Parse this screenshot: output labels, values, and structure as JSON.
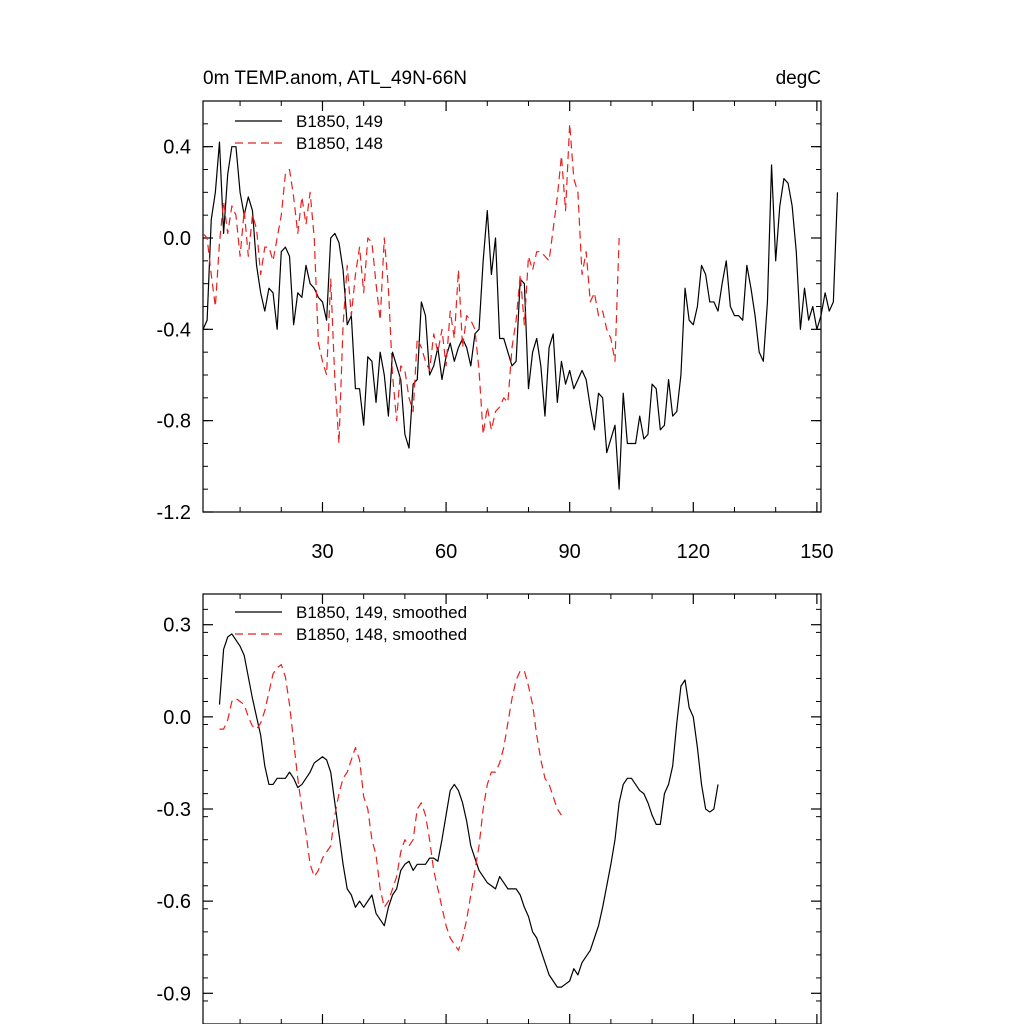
{
  "colors": {
    "run149": "#000000",
    "run148": "#e8211f",
    "axis": "#000000",
    "background": "#ffffff"
  },
  "chart_data": [
    {
      "type": "line",
      "title": "0m TEMP.anom, ATL_49N-66N",
      "units": "degC",
      "xlim": [
        1,
        151
      ],
      "ylim": [
        -1.2,
        0.6
      ],
      "xticks": [
        30,
        60,
        90,
        120,
        150
      ],
      "yticks": [
        -1.2,
        -0.8,
        -0.4,
        0.0,
        0.4
      ],
      "ytick_labels": [
        "-1.2",
        "-0.8",
        "-0.4",
        "0.0",
        "0.4"
      ],
      "grid": false,
      "legend_position": "top-left",
      "series": [
        {
          "name": "B1850, 149",
          "style": "solid",
          "x_start": 1,
          "values": [
            -0.4,
            -0.36,
            0.08,
            0.2,
            0.42,
            0.02,
            0.28,
            0.4,
            0.4,
            0.2,
            0.1,
            0.18,
            0.12,
            -0.12,
            -0.24,
            -0.32,
            -0.22,
            -0.24,
            -0.4,
            -0.06,
            -0.04,
            -0.08,
            -0.38,
            -0.24,
            -0.26,
            -0.12,
            -0.2,
            -0.22,
            -0.26,
            -0.28,
            -0.36,
            0.0,
            0.02,
            -0.02,
            -0.14,
            -0.38,
            -0.34,
            -0.66,
            -0.66,
            -0.82,
            -0.52,
            -0.54,
            -0.72,
            -0.5,
            -0.6,
            -0.78,
            -0.5,
            -0.56,
            -0.62,
            -0.86,
            -0.92,
            -0.64,
            -0.62,
            -0.28,
            -0.34,
            -0.6,
            -0.56,
            -0.48,
            -0.62,
            -0.52,
            -0.46,
            -0.54,
            -0.48,
            -0.44,
            -0.48,
            -0.56,
            -0.42,
            -0.4,
            -0.1,
            0.12,
            -0.16,
            0.0,
            -0.44,
            -0.44,
            -0.5,
            -0.56,
            -0.54,
            -0.18,
            -0.2,
            -0.66,
            -0.5,
            -0.44,
            -0.56,
            -0.78,
            -0.48,
            -0.42,
            -0.72,
            -0.54,
            -0.64,
            -0.58,
            -0.66,
            -0.62,
            -0.58,
            -0.62,
            -0.74,
            -0.84,
            -0.68,
            -0.7,
            -0.94,
            -0.88,
            -0.82,
            -1.1,
            -0.68,
            -0.9,
            -0.9,
            -0.9,
            -0.78,
            -0.88,
            -0.86,
            -0.64,
            -0.66,
            -0.84,
            -0.82,
            -0.62,
            -0.78,
            -0.76,
            -0.6,
            -0.22,
            -0.36,
            -0.38,
            -0.3,
            -0.12,
            -0.16,
            -0.28,
            -0.28,
            -0.32,
            -0.2,
            -0.1,
            -0.3,
            -0.34,
            -0.34,
            -0.36,
            -0.12,
            -0.22,
            -0.34,
            -0.5,
            -0.54,
            -0.28,
            0.32,
            -0.1,
            0.14,
            0.26,
            0.24,
            0.14,
            -0.06,
            -0.4,
            -0.22,
            -0.36,
            -0.3,
            -0.4,
            -0.34,
            -0.24,
            -0.32,
            -0.28,
            0.2
          ]
        },
        {
          "name": "B1850, 148",
          "style": "dashed",
          "x_start": 1,
          "values": [
            0.02,
            0.0,
            -0.16,
            -0.3,
            -0.02,
            0.16,
            0.02,
            0.14,
            0.1,
            -0.08,
            0.12,
            -0.08,
            0.1,
            0.04,
            -0.16,
            -0.04,
            -0.04,
            -0.1,
            0.0,
            0.1,
            0.28,
            0.3,
            0.18,
            0.02,
            0.18,
            0.06,
            0.2,
            0.0,
            -0.46,
            -0.54,
            -0.6,
            -0.18,
            -0.62,
            -0.9,
            -0.38,
            -0.12,
            -0.34,
            -0.16,
            -0.04,
            -0.24,
            0.0,
            -0.02,
            -0.2,
            -0.36,
            0.0,
            -0.22,
            -0.6,
            -0.8,
            -0.56,
            -0.58,
            -0.7,
            -0.76,
            -0.44,
            -0.48,
            -0.54,
            -0.58,
            -0.42,
            -0.5,
            -0.4,
            -0.56,
            -0.32,
            -0.44,
            -0.14,
            -0.48,
            -0.34,
            -0.36,
            -0.4,
            -0.58,
            -0.86,
            -0.74,
            -0.84,
            -0.76,
            -0.74,
            -0.7,
            -0.72,
            -0.48,
            -0.36,
            -0.16,
            -0.38,
            -0.08,
            -0.14,
            -0.06,
            -0.06,
            -0.08,
            -0.1,
            0.04,
            0.18,
            0.36,
            0.12,
            0.5,
            0.26,
            0.2,
            -0.16,
            -0.06,
            -0.28,
            -0.24,
            -0.34,
            -0.32,
            -0.4,
            -0.44,
            -0.54,
            0.0
          ]
        }
      ]
    },
    {
      "type": "line",
      "title": "",
      "xlim": [
        1,
        151
      ],
      "ylim": [
        -1.0,
        0.4
      ],
      "xticks": [
        30,
        60,
        90,
        120,
        150
      ],
      "yticks": [
        -0.9,
        -0.6,
        -0.3,
        0.0,
        0.3
      ],
      "ytick_labels": [
        "-0.9",
        "-0.6",
        "-0.3",
        "0.0",
        "0.3"
      ],
      "grid": false,
      "legend_position": "top-left",
      "series": [
        {
          "name": "B1850, 149, smoothed",
          "style": "solid",
          "x_start": 5,
          "values": [
            0.04,
            0.22,
            0.26,
            0.27,
            0.25,
            0.23,
            0.2,
            0.13,
            0.06,
            0.0,
            -0.06,
            -0.16,
            -0.22,
            -0.22,
            -0.2,
            -0.2,
            -0.2,
            -0.18,
            -0.2,
            -0.23,
            -0.22,
            -0.2,
            -0.18,
            -0.15,
            -0.14,
            -0.13,
            -0.14,
            -0.18,
            -0.28,
            -0.38,
            -0.48,
            -0.56,
            -0.58,
            -0.62,
            -0.6,
            -0.62,
            -0.6,
            -0.58,
            -0.64,
            -0.66,
            -0.68,
            -0.62,
            -0.58,
            -0.56,
            -0.5,
            -0.48,
            -0.47,
            -0.5,
            -0.48,
            -0.48,
            -0.48,
            -0.46,
            -0.46,
            -0.47,
            -0.4,
            -0.32,
            -0.24,
            -0.22,
            -0.24,
            -0.28,
            -0.34,
            -0.42,
            -0.46,
            -0.5,
            -0.52,
            -0.54,
            -0.55,
            -0.56,
            -0.52,
            -0.54,
            -0.56,
            -0.56,
            -0.56,
            -0.58,
            -0.62,
            -0.65,
            -0.7,
            -0.72,
            -0.76,
            -0.8,
            -0.84,
            -0.86,
            -0.88,
            -0.88,
            -0.87,
            -0.86,
            -0.82,
            -0.84,
            -0.8,
            -0.78,
            -0.76,
            -0.72,
            -0.68,
            -0.62,
            -0.55,
            -0.48,
            -0.4,
            -0.28,
            -0.22,
            -0.2,
            -0.2,
            -0.22,
            -0.24,
            -0.25,
            -0.28,
            -0.32,
            -0.35,
            -0.35,
            -0.25,
            -0.22,
            -0.16,
            -0.02,
            0.1,
            0.12,
            0.03,
            0.0,
            -0.1,
            -0.22,
            -0.3,
            -0.31,
            -0.3,
            -0.22
          ]
        },
        {
          "name": "B1850, 148, smoothed",
          "style": "dashed",
          "x_start": 5,
          "values": [
            -0.04,
            -0.04,
            -0.01,
            0.05,
            0.06,
            0.05,
            0.04,
            0.0,
            -0.03,
            -0.04,
            -0.02,
            0.02,
            0.08,
            0.14,
            0.16,
            0.17,
            0.13,
            0.04,
            -0.08,
            -0.2,
            -0.3,
            -0.38,
            -0.48,
            -0.52,
            -0.5,
            -0.46,
            -0.44,
            -0.42,
            -0.32,
            -0.25,
            -0.2,
            -0.18,
            -0.14,
            -0.1,
            -0.14,
            -0.26,
            -0.3,
            -0.4,
            -0.45,
            -0.56,
            -0.62,
            -0.6,
            -0.56,
            -0.52,
            -0.44,
            -0.4,
            -0.42,
            -0.4,
            -0.3,
            -0.28,
            -0.32,
            -0.4,
            -0.5,
            -0.56,
            -0.62,
            -0.68,
            -0.72,
            -0.74,
            -0.76,
            -0.72,
            -0.66,
            -0.58,
            -0.5,
            -0.42,
            -0.3,
            -0.22,
            -0.18,
            -0.18,
            -0.15,
            -0.1,
            -0.02,
            0.06,
            0.12,
            0.15,
            0.15,
            0.1,
            0.04,
            -0.06,
            -0.14,
            -0.2,
            -0.22,
            -0.26,
            -0.3,
            -0.32
          ]
        }
      ]
    }
  ]
}
